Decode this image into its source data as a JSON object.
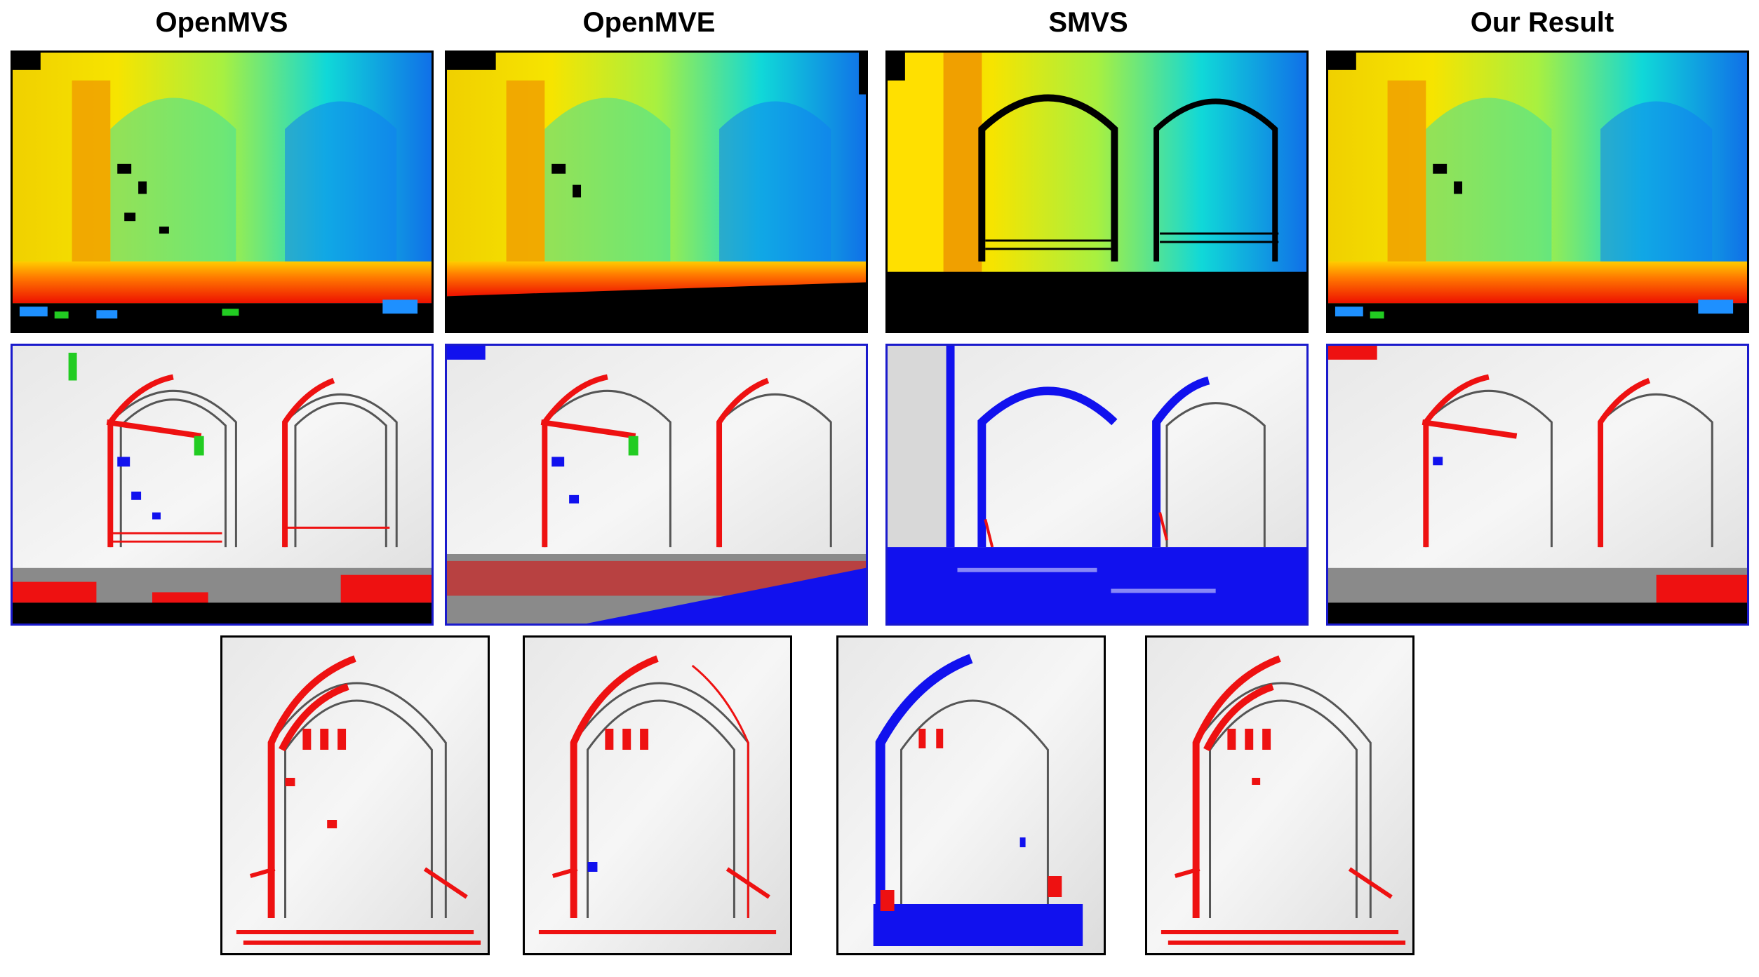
{
  "columns": [
    {
      "title": "OpenMVS"
    },
    {
      "title": "OpenMVE"
    },
    {
      "title": "SMVS"
    },
    {
      "title": "Our Result"
    }
  ],
  "colors": {
    "error_red": "#ee1111",
    "missing_blue": "#1111ee",
    "extra_green": "#22cc22",
    "void_black": "#000000"
  },
  "rows": [
    {
      "kind": "depth-map",
      "panels": 4
    },
    {
      "kind": "error-map",
      "panels": 4
    },
    {
      "kind": "zoomed-error-map",
      "panels": 4
    }
  ]
}
